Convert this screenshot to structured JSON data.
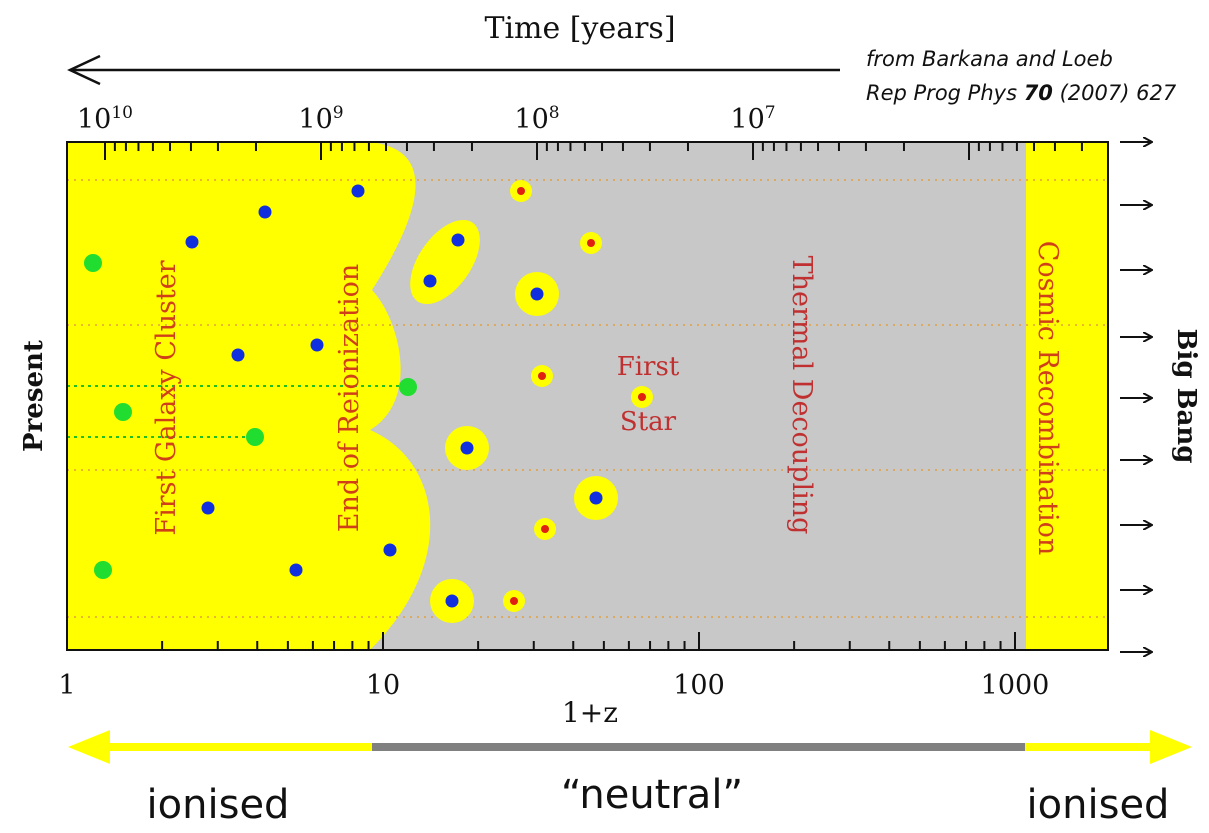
{
  "header": {
    "title": "Time [years]",
    "citation": {
      "line1": "from Barkana and Loeb",
      "line2_pre": "Rep Prog Phys ",
      "line2_volume": "70",
      "line2_post": " (2007) 627"
    }
  },
  "top_axis": {
    "ticks": [
      {
        "base": "10",
        "exp": "10"
      },
      {
        "base": "10",
        "exp": "9"
      },
      {
        "base": "10",
        "exp": "8"
      },
      {
        "base": "10",
        "exp": "7"
      }
    ]
  },
  "bottom_axis": {
    "ticks": [
      "1",
      "10",
      "100",
      "1000"
    ],
    "label": "1+z"
  },
  "side_labels": {
    "left": "Present",
    "right": "Big Bang"
  },
  "regions": {
    "galaxy_cluster": "First Galaxy Cluster",
    "reionization": "End of Reionization",
    "first_star": [
      "First",
      "Star"
    ],
    "decoupling": "Thermal Decoupling",
    "recombination": "Cosmic Recombination"
  },
  "state_bar": {
    "left": "ionised",
    "middle": "“neutral”",
    "right": "ionised"
  }
}
